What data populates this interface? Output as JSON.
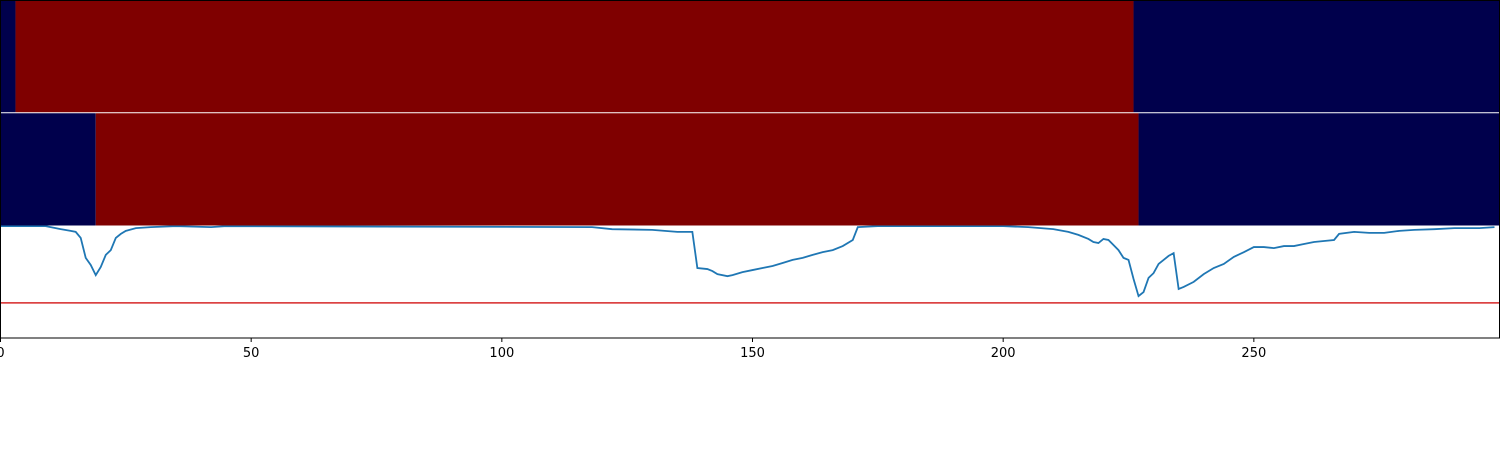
{
  "chart_data": {
    "type": "line",
    "xlim": [
      0,
      299
    ],
    "ylim": [
      0,
      1
    ],
    "xticks": [
      0,
      50,
      100,
      150,
      200,
      250
    ],
    "strip_colors": [
      "#00004c",
      "#7f0000"
    ],
    "strips": [
      {
        "edges": [
          3,
          226
        ],
        "values": [
          0,
          1,
          0
        ]
      },
      {
        "edges": [
          19,
          227
        ],
        "values": [
          0,
          1,
          0
        ]
      }
    ],
    "hline": 0.104,
    "hline_color": "#d62728",
    "series": [
      {
        "color": "#1f77b4",
        "x": [
          0,
          9,
          10,
          12,
          14,
          15,
          16,
          17,
          18,
          19,
          20,
          21,
          22,
          23,
          24,
          25,
          27,
          30,
          35,
          42,
          45,
          118,
          122,
          130,
          135,
          138,
          139,
          141,
          142,
          143,
          145,
          146,
          148,
          150,
          152,
          154,
          156,
          158,
          160,
          162,
          164,
          166,
          168,
          170,
          171,
          175,
          200,
          205,
          210,
          213,
          215,
          217,
          218,
          219,
          220,
          221,
          222,
          223,
          224,
          225,
          226,
          227,
          228,
          229,
          230,
          231,
          232,
          233,
          234,
          235,
          236,
          238,
          240,
          242,
          244,
          246,
          248,
          250,
          252,
          254,
          256,
          258,
          260,
          262,
          264,
          266,
          267,
          270,
          273,
          276,
          279,
          282,
          286,
          290,
          295,
          298
        ],
        "values": [
          0.331,
          0.331,
          0.328,
          0.322,
          0.317,
          0.314,
          0.296,
          0.237,
          0.216,
          0.186,
          0.21,
          0.246,
          0.26,
          0.296,
          0.308,
          0.317,
          0.325,
          0.328,
          0.331,
          0.328,
          0.331,
          0.328,
          0.322,
          0.32,
          0.314,
          0.314,
          0.207,
          0.204,
          0.198,
          0.189,
          0.183,
          0.186,
          0.195,
          0.201,
          0.207,
          0.213,
          0.222,
          0.231,
          0.237,
          0.246,
          0.254,
          0.26,
          0.272,
          0.29,
          0.328,
          0.331,
          0.331,
          0.328,
          0.322,
          0.314,
          0.305,
          0.293,
          0.284,
          0.281,
          0.293,
          0.29,
          0.275,
          0.26,
          0.237,
          0.231,
          0.175,
          0.124,
          0.136,
          0.178,
          0.192,
          0.219,
          0.231,
          0.243,
          0.251,
          0.145,
          0.151,
          0.166,
          0.189,
          0.207,
          0.219,
          0.24,
          0.254,
          0.269,
          0.269,
          0.266,
          0.272,
          0.272,
          0.278,
          0.284,
          0.287,
          0.29,
          0.308,
          0.314,
          0.311,
          0.311,
          0.317,
          0.32,
          0.322,
          0.325,
          0.325,
          0.328
        ]
      }
    ]
  }
}
